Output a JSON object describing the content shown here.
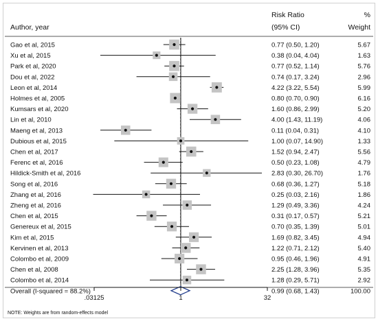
{
  "chart_data": {
    "type": "forest",
    "header": {
      "study": "Author, year",
      "rr_line1": "Risk Ratio",
      "rr_line2": "(95% CI)",
      "wt_line1": "%",
      "wt_line2": "Weight"
    },
    "x_scale": "log2",
    "xlim": [
      0.0313,
      40
    ],
    "x_ticks": [
      {
        "value": 0.03125,
        "label": ".03125"
      },
      {
        "value": 1,
        "label": "1"
      },
      {
        "value": 32,
        "label": "32"
      }
    ],
    "null_line": 1,
    "studies": [
      {
        "label": "Gao et al, 2015",
        "rr": 0.77,
        "lo": 0.5,
        "hi": 1.2,
        "ci_text": "0.77 (0.50, 1.20)",
        "weight": 5.67,
        "weight_text": "5.67"
      },
      {
        "label": "Xu et al, 2015",
        "rr": 0.38,
        "lo": 0.04,
        "hi": 4.04,
        "ci_text": "0.38 (0.04, 4.04)",
        "weight": 1.63,
        "weight_text": "1.63"
      },
      {
        "label": "Park et al, 2020",
        "rr": 0.77,
        "lo": 0.52,
        "hi": 1.14,
        "ci_text": "0.77 (0.52, 1.14)",
        "weight": 5.76,
        "weight_text": "5.76"
      },
      {
        "label": "Dou et al, 2022",
        "rr": 0.74,
        "lo": 0.17,
        "hi": 3.24,
        "ci_text": "0.74 (0.17, 3.24)",
        "weight": 2.96,
        "weight_text": "2.96"
      },
      {
        "label": "Leon et al, 2014",
        "rr": 4.22,
        "lo": 3.22,
        "hi": 5.54,
        "ci_text": "4.22 (3.22, 5.54)",
        "weight": 5.99,
        "weight_text": "5.99"
      },
      {
        "label": "Holmes et al, 2005",
        "rr": 0.8,
        "lo": 0.7,
        "hi": 0.9,
        "ci_text": "0.80 (0.70, 0.90)",
        "weight": 6.16,
        "weight_text": "6.16"
      },
      {
        "label": "Kumsars et al, 2020",
        "rr": 1.6,
        "lo": 0.86,
        "hi": 2.99,
        "ci_text": "1.60 (0.86, 2.99)",
        "weight": 5.2,
        "weight_text": "5.20"
      },
      {
        "label": "Lin et al, 2010",
        "rr": 4.0,
        "lo": 1.43,
        "hi": 11.19,
        "ci_text": "4.00 (1.43, 11.19)",
        "weight": 4.06,
        "weight_text": "4.06"
      },
      {
        "label": "Maeng et al, 2013",
        "rr": 0.11,
        "lo": 0.04,
        "hi": 0.31,
        "ci_text": "0.11 (0.04, 0.31)",
        "weight": 4.1,
        "weight_text": "4.10"
      },
      {
        "label": "Dubious et al, 2015",
        "rr": 1.0,
        "lo": 0.07,
        "hi": 14.9,
        "ci_text": "1.00 (0.07, 14.90)",
        "weight": 1.33,
        "weight_text": "1.33"
      },
      {
        "label": "Chen et al, 2017",
        "rr": 1.52,
        "lo": 0.94,
        "hi": 2.47,
        "ci_text": "1.52 (0.94, 2.47)",
        "weight": 5.56,
        "weight_text": "5.56"
      },
      {
        "label": "Ferenc et al, 2016",
        "rr": 0.5,
        "lo": 0.23,
        "hi": 1.08,
        "ci_text": "0.50 (0.23, 1.08)",
        "weight": 4.79,
        "weight_text": "4.79"
      },
      {
        "label": "Hildick-Smith et al, 2016",
        "rr": 2.83,
        "lo": 0.3,
        "hi": 26.7,
        "ci_text": "2.83 (0.30, 26.70)",
        "weight": 1.76,
        "weight_text": "1.76"
      },
      {
        "label": "Song et al, 2016",
        "rr": 0.68,
        "lo": 0.36,
        "hi": 1.27,
        "ci_text": "0.68 (0.36, 1.27)",
        "weight": 5.18,
        "weight_text": "5.18"
      },
      {
        "label": "Zhang et al, 2016",
        "rr": 0.25,
        "lo": 0.03,
        "hi": 2.16,
        "ci_text": "0.25 (0.03, 2.16)",
        "weight": 1.86,
        "weight_text": "1.86"
      },
      {
        "label": "Zheng et al, 2016",
        "rr": 1.29,
        "lo": 0.49,
        "hi": 3.36,
        "ci_text": "1.29 (0.49, 3.36)",
        "weight": 4.24,
        "weight_text": "4.24"
      },
      {
        "label": "Chen et al, 2015",
        "rr": 0.31,
        "lo": 0.17,
        "hi": 0.57,
        "ci_text": "0.31 (0.17, 0.57)",
        "weight": 5.21,
        "weight_text": "5.21"
      },
      {
        "label": "Genereux et al, 2015",
        "rr": 0.7,
        "lo": 0.35,
        "hi": 1.39,
        "ci_text": "0.70 (0.35, 1.39)",
        "weight": 5.01,
        "weight_text": "5.01"
      },
      {
        "label": "Kim et al, 2015",
        "rr": 1.69,
        "lo": 0.82,
        "hi": 3.45,
        "ci_text": "1.69 (0.82, 3.45)",
        "weight": 4.94,
        "weight_text": "4.94"
      },
      {
        "label": "Kervinen et  al, 2013",
        "rr": 1.22,
        "lo": 0.71,
        "hi": 2.12,
        "ci_text": "1.22 (0.71, 2.12)",
        "weight": 5.4,
        "weight_text": "5.40"
      },
      {
        "label": "Colombo et al, 2009",
        "rr": 0.95,
        "lo": 0.46,
        "hi": 1.96,
        "ci_text": "0.95 (0.46, 1.96)",
        "weight": 4.91,
        "weight_text": "4.91"
      },
      {
        "label": "Chen et al, 2008",
        "rr": 2.25,
        "lo": 1.28,
        "hi": 3.96,
        "ci_text": "2.25 (1.28, 3.96)",
        "weight": 5.35,
        "weight_text": "5.35"
      },
      {
        "label": "Colombo et al, 2014",
        "rr": 1.28,
        "lo": 0.29,
        "hi": 5.71,
        "ci_text": "1.28 (0.29, 5.71)",
        "weight": 2.92,
        "weight_text": "2.92"
      }
    ],
    "overall": {
      "label": "Overall  (I-squared = 88.2%)",
      "rr": 0.99,
      "lo": 0.68,
      "hi": 1.43,
      "ci_text": "0.99 (0.68, 1.43)",
      "weight_text": "100.00"
    },
    "note": "NOTE: Weights are from random-effects model"
  }
}
